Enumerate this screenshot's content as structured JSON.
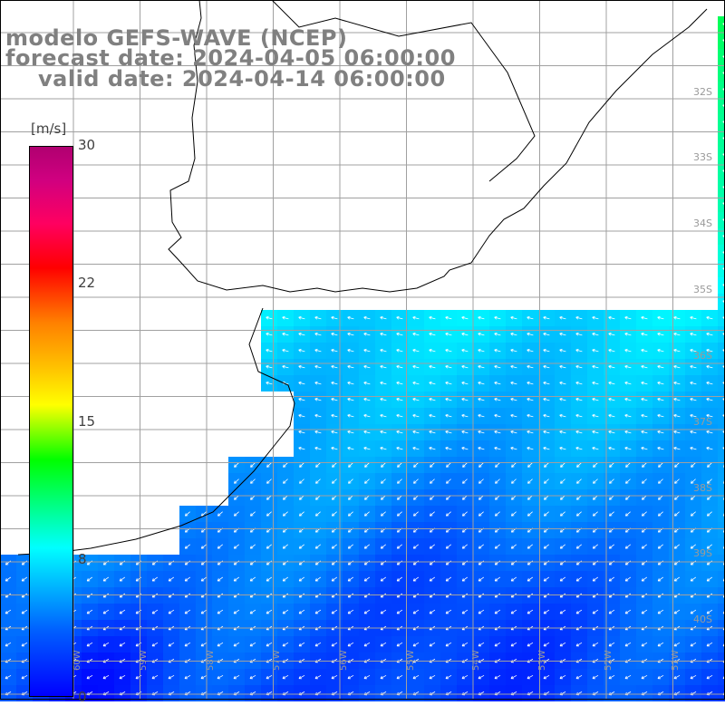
{
  "title": {
    "line1": "modelo GEFS-WAVE (NCEP)",
    "line2": "forecast date: 2024-04-05 06:00:00",
    "line3": "valid date: 2024-04-14 06:00:00"
  },
  "colorbar": {
    "unit": "[m/s]",
    "ticks": [
      "30",
      "22",
      "15",
      "8",
      "0"
    ]
  },
  "grid": {
    "lat_labels": [
      "32S",
      "33S",
      "34S",
      "35S",
      "36S",
      "37S",
      "38S",
      "39S",
      "40S"
    ],
    "lon_labels": [
      "60W",
      "59W",
      "58W",
      "57W",
      "56W",
      "55W",
      "54W",
      "53W",
      "52W",
      "51W"
    ]
  },
  "colors": {
    "land": "#ffffff",
    "grid_line": "#a0a0a0",
    "coast": "#000000",
    "arrow": "#ffffff"
  }
}
